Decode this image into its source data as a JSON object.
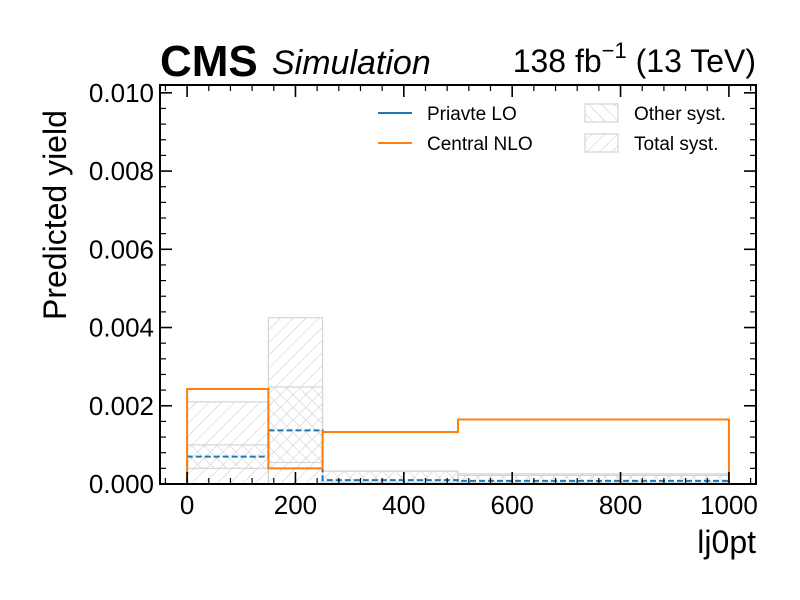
{
  "header": {
    "experiment": "CMS",
    "qualifier": "Simulation",
    "lumi_value": "138 fb",
    "lumi_exp": "−1",
    "energy": " (13 TeV)"
  },
  "chart_data": {
    "type": "step-histogram",
    "xlabel": "lj0pt",
    "ylabel": "Predicted yield",
    "xlim": [
      -50,
      1050
    ],
    "ylim": [
      0,
      0.0102
    ],
    "x_ticks": [
      0,
      200,
      400,
      600,
      800,
      1000
    ],
    "x_tick_labels": [
      "0",
      "200",
      "400",
      "600",
      "800",
      "1000"
    ],
    "y_ticks": [
      0,
      0.002,
      0.004,
      0.006,
      0.008,
      0.01
    ],
    "y_tick_labels": [
      "0.000",
      "0.002",
      "0.004",
      "0.006",
      "0.008",
      "0.010"
    ],
    "bin_edges": [
      0,
      150,
      250,
      500,
      1000
    ],
    "series": [
      {
        "name": "Priavte LO",
        "color": "#1f77b4",
        "style": "dashed",
        "values": [
          0.0007,
          0.00137,
          0.0001,
          8e-05
        ]
      },
      {
        "name": "Central NLO",
        "color": "#ff7f0e",
        "style": "solid",
        "values": [
          0.00243,
          0.0004,
          0.00133,
          0.00165
        ]
      }
    ],
    "bands": [
      {
        "name": "Other syst.",
        "hatch": "forward",
        "color": "#cccccc",
        "low": [
          0.0004,
          0.00055,
          5e-05,
          3e-05
        ],
        "high": [
          0.001,
          0.00248,
          0.00033,
          0.00022
        ]
      },
      {
        "name": "Total syst.",
        "hatch": "backward",
        "color": "#cccccc",
        "low": [
          0.0,
          0.0,
          0.0,
          0.0
        ],
        "high": [
          0.0021,
          0.00425,
          0.00033,
          0.00026
        ]
      }
    ],
    "legend_position": "top-right"
  }
}
